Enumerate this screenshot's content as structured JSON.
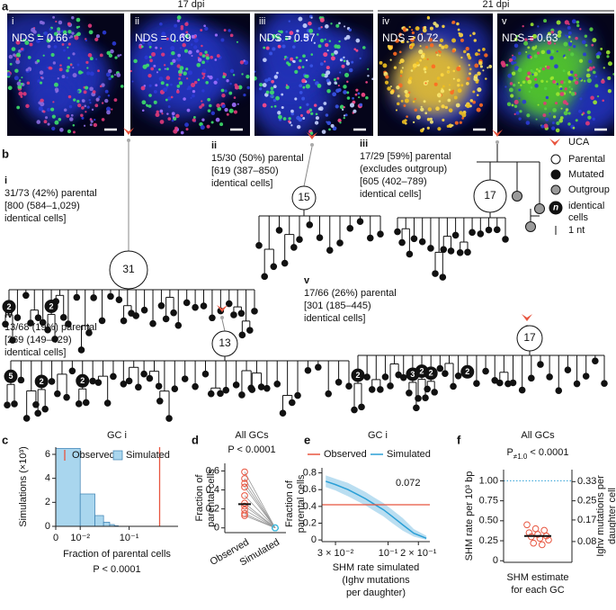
{
  "panel_a": {
    "label": "a",
    "groups": [
      {
        "label": "17 dpi"
      },
      {
        "label": "21 dpi"
      }
    ],
    "images": [
      {
        "numeral": "i",
        "nds": "NDS = 0.66"
      },
      {
        "numeral": "ii",
        "nds": "NDS = 0.69"
      },
      {
        "numeral": "iii",
        "nds": "NDS = 0.57"
      },
      {
        "numeral": "iv",
        "nds": "NDS = 0.72"
      },
      {
        "numeral": "v",
        "nds": "NDS = 0.63"
      }
    ]
  },
  "panel_b": {
    "label": "b",
    "trees": [
      {
        "numeral": "i",
        "lines": [
          "31/73 (42%) parental",
          "[800 (584–1,029)",
          "identical cells]"
        ],
        "parental_count": 31,
        "badges": [
          2,
          2
        ]
      },
      {
        "numeral": "ii",
        "lines": [
          "15/30 (50%) parental",
          "[619 (387–850)",
          "identical cells]"
        ],
        "parental_count": 15,
        "badges": []
      },
      {
        "numeral": "iii",
        "lines": [
          "17/29 [59%] parental",
          "(excludes outgroup)",
          "[605 (402–789)",
          "identical cells]"
        ],
        "parental_count": 17,
        "badges": []
      },
      {
        "numeral": "iv",
        "lines": [
          "13/68 (19%) parental",
          "[269 (149–429)",
          "identical cells]"
        ],
        "parental_count": 13,
        "badges": [
          5,
          2,
          2
        ]
      },
      {
        "numeral": "v",
        "lines": [
          "17/66 (26%) parental",
          "[301 (185–445)",
          "identical cells]"
        ],
        "parental_count": 17,
        "badges": [
          2,
          3,
          2,
          2,
          2
        ]
      }
    ],
    "legend": {
      "uca": "UCA",
      "parental": "Parental",
      "mutated": "Mutated",
      "outgroup": "Outgroup",
      "n": "n",
      "identical": [
        "identical",
        "cells"
      ],
      "nt": "1 nt"
    }
  },
  "chart_data": [
    {
      "type": "histogram",
      "panel": "c",
      "title": "GC i",
      "ylabel": "Simulations (×10³)",
      "xlabel": "Fraction of parental cells",
      "note": "P < 0.0001",
      "xscale": "symlog",
      "linthresh": 0.01,
      "xlim": [
        0,
        1
      ],
      "xticks": [
        0,
        {
          "value": 0.01,
          "label": "10⁻²"
        },
        {
          "value": 0.1,
          "label": "10⁻¹"
        }
      ],
      "ylim": [
        0,
        6.6
      ],
      "yticks": [
        0,
        2,
        4,
        6
      ],
      "bins": [
        0,
        0.01,
        0.02,
        0.03,
        0.04,
        0.05,
        0.06
      ],
      "values": [
        6.5,
        2.7,
        0.9,
        0.35,
        0.15,
        0.05
      ],
      "simulated": {
        "name": "Simulated",
        "color": "#a9d6ee"
      },
      "observed": {
        "name": "Observed",
        "color": "#e8553f",
        "value": 0.42
      }
    },
    {
      "type": "paired",
      "panel": "d",
      "title": "All GCs",
      "subtitle": "P < 0.0001",
      "ylabel": [
        "Fraction of",
        "parental cells"
      ],
      "categories": [
        "Observed",
        "Simulated"
      ],
      "colors": [
        "#e8553f",
        "#3cb8dc"
      ],
      "ylim": [
        -0.05,
        0.68
      ],
      "yticks": [
        0,
        0.2,
        0.4,
        0.6
      ],
      "values": [
        [
          0.59,
          0.52,
          0.47,
          0.43,
          0.34,
          0.26,
          0.23,
          0.19,
          0.15,
          0.13
        ],
        [
          0,
          0,
          0,
          0,
          0,
          0,
          0,
          0,
          0,
          0
        ]
      ],
      "center": 0.25
    },
    {
      "type": "line",
      "panel": "e",
      "title": "GC i",
      "ylabel": [
        "Fraction of",
        "parental cells"
      ],
      "xlabel": [
        "SHM rate simulated",
        "(Ighv mutations",
        "per daughter)"
      ],
      "annotation": "0.072",
      "xscale": "log",
      "xlim": [
        0.022,
        0.26
      ],
      "xticks": [
        {
          "value": 0.03,
          "label": "3 × 10⁻²"
        },
        {
          "value": 0.1,
          "label": "10⁻¹"
        },
        {
          "value": 0.2,
          "label": "2 × 10⁻¹"
        }
      ],
      "ylim": [
        -0.02,
        0.86
      ],
      "yticks": [
        0,
        0.2,
        0.4,
        0.6,
        0.8
      ],
      "series": [
        {
          "name": "Observed",
          "color": "#e8553f",
          "value": 0.42
        },
        {
          "name": "Simulated",
          "color": "#2a9fd6",
          "x": [
            0.024,
            0.03,
            0.04,
            0.05,
            0.06,
            0.072,
            0.09,
            0.11,
            0.14,
            0.18,
            0.24
          ],
          "values": [
            0.7,
            0.66,
            0.6,
            0.54,
            0.49,
            0.43,
            0.36,
            0.28,
            0.18,
            0.08,
            0.02
          ],
          "lower": [
            0.63,
            0.59,
            0.52,
            0.46,
            0.41,
            0.35,
            0.28,
            0.2,
            0.11,
            0.04,
            0.0
          ],
          "upper": [
            0.77,
            0.73,
            0.68,
            0.62,
            0.57,
            0.51,
            0.44,
            0.36,
            0.26,
            0.13,
            0.05
          ]
        }
      ]
    },
    {
      "type": "strip",
      "panel": "f",
      "title": "All GCs",
      "subtitle": [
        "P",
        "≠1.0",
        " < 0.0001"
      ],
      "ylabel": "SHM rate per 10³ bp",
      "y2label": [
        "Ighv mutations per",
        "daughter cell"
      ],
      "xlabel": [
        "SHM estimate",
        "for each GC"
      ],
      "color": "#e8553f",
      "ylim": [
        -0.02,
        1.14
      ],
      "yticks": [
        0,
        0.25,
        {
          "value": 0.5,
          "label": "0.50"
        },
        0.75,
        {
          "value": 1,
          "label": "1.00"
        }
      ],
      "y2lim": [
        -0.0067,
        0.38
      ],
      "y2ticks": [
        0.08,
        0.17,
        0.25,
        0.33
      ],
      "values": [
        0.45,
        0.4,
        0.38,
        0.35,
        0.33,
        0.31,
        0.3,
        0.28,
        0.26,
        0.22,
        0.2
      ],
      "center": 0.31,
      "reference": 1.0
    }
  ]
}
